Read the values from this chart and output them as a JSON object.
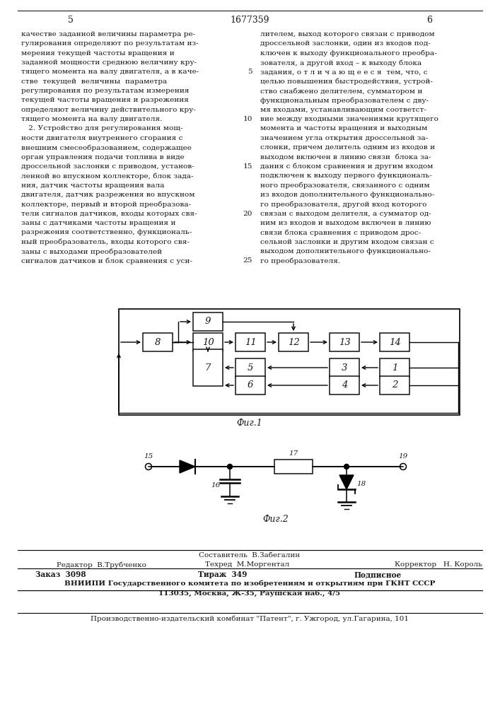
{
  "page_number_left": "5",
  "page_number_center": "1677359",
  "page_number_right": "6",
  "background_color": "#ffffff",
  "text_color": "#1a1a1a",
  "left_col_lines": [
    "качестве заданной величины параметра ре-",
    "гулирования определяют по результатам из-",
    "мерения текущей частоты вращения и",
    "заданной мощности среднюю величину кру-",
    "тящего момента на валу двигателя, а в каче-",
    "стве  текущей  величины  параметра",
    "регулирования по результатам измерения",
    "текущей частоты вращения и разрежения",
    "определяют величину действительного кру-",
    "тящего момента на валу двигателя.",
    "   2. Устройство для регулирования мощ-",
    "ности двигателя внутреннего сгорания с",
    "внешним смесеобразованием, содержащее",
    "орган управления подачи топлива в виде",
    "дроссельной заслонки с приводом, установ-",
    "ленной во впускном коллекторе, блок зада-",
    "ния, датчик частоты вращения вала",
    "двигателя, датчик разрежения во впускном",
    "коллекторе, первый и второй преобразова-",
    "тели сигналов датчиков, входы которых свя-",
    "заны с датчиками частоты вращения и",
    "разрежения соответственно, функциональ-",
    "ный преобразователь, входы которого свя-",
    "заны с выходами преобразователей",
    "сигналов датчиков и блок сравнения с уси-"
  ],
  "right_col_lines": [
    "лителем, выход которого связан с приводом",
    "дроссельной заслонки, один из входов под-",
    "ключен к выходу функционального преобра-",
    "зователя, а другой вход – к выходу блока",
    "задания, о т л и ч а ю щ е е с я  тем, что, с",
    "целью повышения быстродействия, устрой-",
    "ство снабжено делителем, сумматором и",
    "функциональным преобразователем с дву-",
    "мя входами, устанавливающим соответст-",
    "вие между входными значениями крутящего",
    "момента и частоты вращения и выходным",
    "значением угла открытия дроссельной за-",
    "слонки, причем делитель одним из входов и",
    "выходом включен в линию связи  блока за-",
    "дания с блоком сравнения и другим входом",
    "подключен к выходу первого функциональ-",
    "ного преобразователя, связанного с одним",
    "из входов дополнительного функционально-",
    "го преобразователя, другой вход которого",
    "связан с выходом делителя, а сумматор од-",
    "ним из входов и выходом включен в линию",
    "связи блока сравнения с приводом дрос-",
    "сельной заслонки и другим входом связан с",
    "выходом дополнительного функционально-",
    "го преобразователя."
  ],
  "line_number_rows": [
    4,
    9,
    14,
    19,
    24
  ],
  "line_number_vals": [
    "5",
    "10",
    "15",
    "20",
    "25"
  ],
  "fig1_label": "Фиг.1",
  "fig2_label": "Фиг.2",
  "footer_sestavitel_label": "Составитель",
  "footer_sestavitel_name": "В.Забегалин",
  "footer_redaktor_label": "Редактор",
  "footer_redaktor_name": "В.Трубченко",
  "footer_tehred_label": "Техред",
  "footer_tehred_name": "М.Моргентал",
  "footer_korrektor_label": "Корректор",
  "footer_korrektor_name": "Н. Король",
  "footer_zakaz": "Заказ  3098",
  "footer_tirazh": "Тираж  349",
  "footer_podpisnoe": "Подписное",
  "footer_vniiipi": "ВНИИПИ Государственного комитета по изобретениям и открытиям при ГКНТ СССР",
  "footer_address": "113035, Москва, Ж-35, Раушская наб., 4/5",
  "footer_patent": "Производственно-издательский комбинат \"Патент\", г. Ужгород, ул.Гагарина, 101"
}
